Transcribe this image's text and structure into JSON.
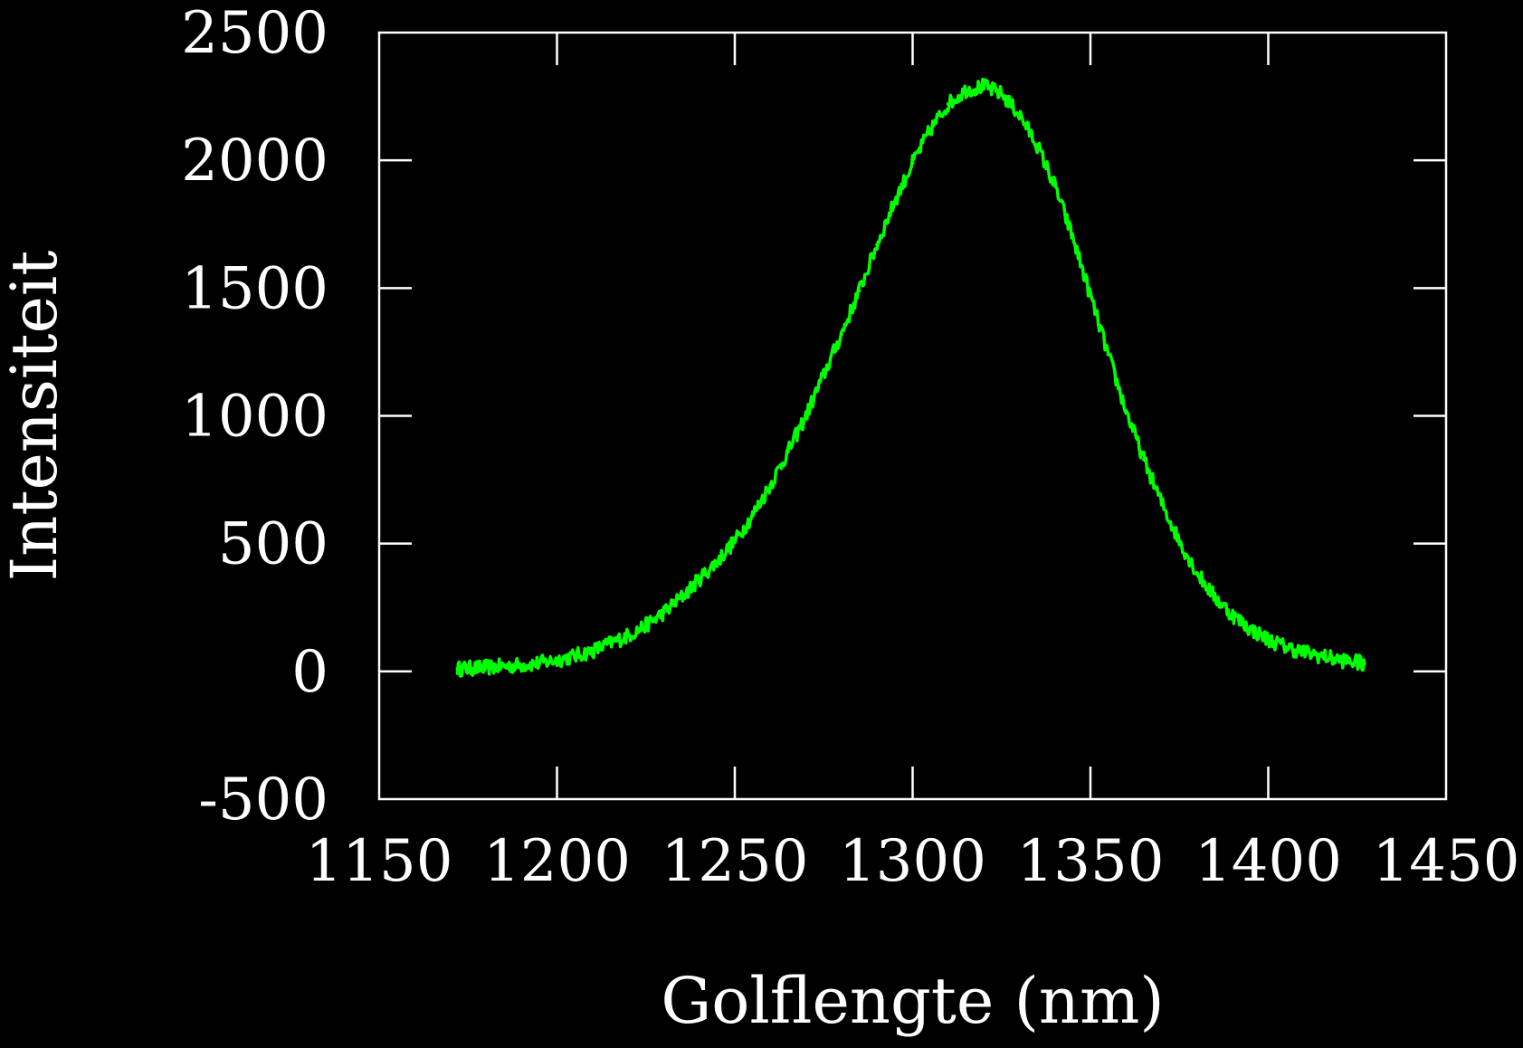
{
  "colors": {
    "background": "#000000",
    "axes": "#ffffff",
    "text": "#ffffff"
  },
  "chart_data": {
    "type": "line",
    "title": "",
    "xlabel": "Golflengte (nm)",
    "ylabel": "Intensiteit",
    "xlim": [
      1150,
      1450
    ],
    "ylim": [
      -500,
      2500
    ],
    "xticks": [
      1150,
      1200,
      1250,
      1300,
      1350,
      1400,
      1450
    ],
    "yticks": [
      -500,
      0,
      500,
      1000,
      1500,
      2000,
      2500
    ],
    "xtick_labels": [
      "1150",
      "1200",
      "1250",
      "1300",
      "1350",
      "1400",
      "1450"
    ],
    "ytick_labels": [
      "-500",
      "0",
      "500",
      "1000",
      "1500",
      "2000",
      "2500"
    ],
    "grid": false,
    "legend": "none",
    "series": [
      {
        "color": "#00ff00",
        "x": [
          1172,
          1176,
          1180,
          1185,
          1190,
          1195,
          1200,
          1205,
          1210,
          1215,
          1220,
          1225,
          1230,
          1235,
          1240,
          1245,
          1250,
          1255,
          1260,
          1265,
          1270,
          1275,
          1280,
          1285,
          1290,
          1295,
          1300,
          1305,
          1310,
          1315,
          1320,
          1325,
          1330,
          1335,
          1340,
          1345,
          1350,
          1355,
          1360,
          1365,
          1370,
          1375,
          1380,
          1385,
          1390,
          1395,
          1400,
          1405,
          1410,
          1415,
          1420,
          1425,
          1427
        ],
        "y": [
          10,
          12,
          15,
          20,
          25,
          32,
          45,
          60,
          80,
          110,
          140,
          180,
          230,
          290,
          360,
          430,
          510,
          610,
          730,
          860,
          1000,
          1160,
          1320,
          1490,
          1670,
          1840,
          1990,
          2120,
          2220,
          2275,
          2290,
          2260,
          2180,
          2060,
          1900,
          1700,
          1470,
          1240,
          1020,
          830,
          660,
          510,
          385,
          290,
          220,
          165,
          125,
          95,
          75,
          60,
          45,
          35,
          30
        ]
      }
    ]
  }
}
